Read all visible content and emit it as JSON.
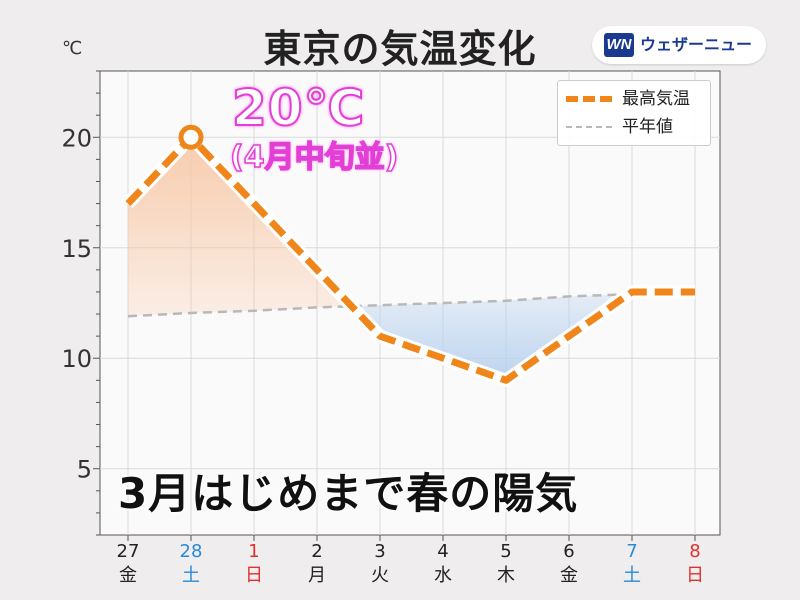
{
  "title": "東京の気温変化",
  "brand": {
    "mark": "WN",
    "name": "ウェザーニュース"
  },
  "unit_label": "℃",
  "highlight": {
    "value": "20℃",
    "note": "(4月中旬並)"
  },
  "headline": "3月はじめまで春の陽気",
  "colors": {
    "max_line": "#f0851a",
    "normal_line": "#b8b8b8",
    "warm_fill": "#f7c9a8",
    "cool_fill": "#b9d2ee",
    "saturday": "#2a8ad8",
    "sunday": "#e03030",
    "weekday": "#222222",
    "plot_bg": "#fbfafa",
    "grid": "#d9d9d9"
  },
  "chart_data": {
    "type": "line",
    "title": "東京の気温変化",
    "categories": [
      {
        "day": "27",
        "weekday": "金",
        "kind": "weekday"
      },
      {
        "day": "28",
        "weekday": "土",
        "kind": "saturday"
      },
      {
        "day": "1",
        "weekday": "日",
        "kind": "sunday"
      },
      {
        "day": "2",
        "weekday": "月",
        "kind": "weekday"
      },
      {
        "day": "3",
        "weekday": "火",
        "kind": "weekday"
      },
      {
        "day": "4",
        "weekday": "水",
        "kind": "weekday"
      },
      {
        "day": "5",
        "weekday": "木",
        "kind": "weekday"
      },
      {
        "day": "6",
        "weekday": "金",
        "kind": "weekday"
      },
      {
        "day": "7",
        "weekday": "土",
        "kind": "saturday"
      },
      {
        "day": "8",
        "weekday": "日",
        "kind": "sunday"
      }
    ],
    "series": [
      {
        "name": "最高気温",
        "values": [
          17,
          20,
          17,
          14,
          11,
          10,
          9,
          11,
          13,
          13
        ],
        "style": "thick-dashed"
      },
      {
        "name": "平年値",
        "values": [
          11.9,
          12.05,
          12.15,
          12.3,
          12.4,
          12.5,
          12.6,
          12.8,
          12.9,
          null
        ],
        "style": "thin-dashed"
      }
    ],
    "highlight_point": {
      "index": 1,
      "value": 20
    },
    "ylim": [
      2,
      23
    ],
    "yticks": [
      5,
      10,
      15,
      20
    ],
    "ytick_labels": [
      "5",
      "10",
      "15",
      "20"
    ],
    "ylabel": "℃",
    "legend_position": "top-right",
    "grid": true
  }
}
